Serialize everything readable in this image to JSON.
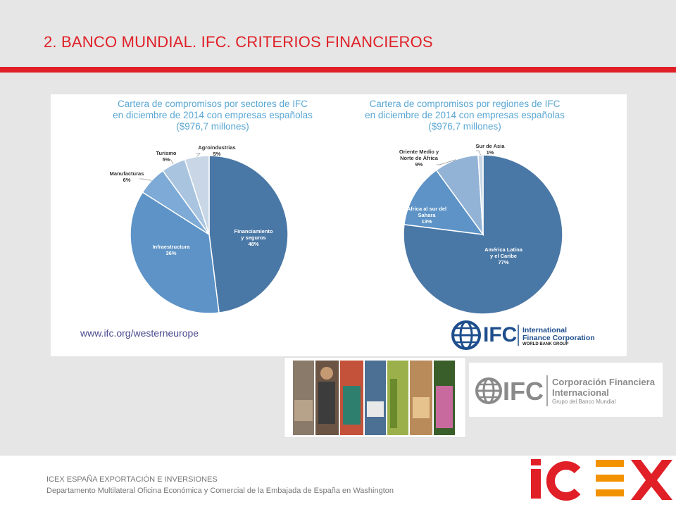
{
  "slide": {
    "title": "2. BANCO MUNDIAL. IFC. CRITERIOS FINANCIEROS"
  },
  "chart_data": [
    {
      "type": "pie",
      "title": "Cartera de compromisos por sectores de IFC\nen diciembre de 2014 con empresas españolas\n($976,7 millones)",
      "slices": [
        {
          "label": "Financiamiento\ny seguros",
          "value": 48,
          "display": "48%",
          "color": "#4a78a6"
        },
        {
          "label": "Infraestructura",
          "value": 36,
          "display": "36%",
          "color": "#5d93c6"
        },
        {
          "label": "Manufacturas",
          "value": 6,
          "display": "6%",
          "color": "#7daad6"
        },
        {
          "label": "Turismo",
          "value": 5,
          "display": "5%",
          "color": "#a9c4df"
        },
        {
          "label": "Agroindustrias",
          "value": 5,
          "display": "5%",
          "color": "#c8d6e6"
        }
      ]
    },
    {
      "type": "pie",
      "title": "Cartera de compromisos por regiones de IFC\nen diciembre de 2014 con empresas españolas\n($976,7 millones)",
      "slices": [
        {
          "label": "América Latina\ny el Caribe",
          "value": 77,
          "display": "77%",
          "color": "#4a78a6"
        },
        {
          "label": "África al sur del\nSahara",
          "value": 13,
          "display": "13%",
          "color": "#5d93c6"
        },
        {
          "label": "Oriente Medio y\nNorte de África",
          "value": 9,
          "display": "9%",
          "color": "#93b3d6"
        },
        {
          "label": "Sur de Asia",
          "value": 1,
          "display": "1%",
          "color": "#c8d6e6"
        }
      ]
    }
  ],
  "panel": {
    "url": "www.ifc.org/westerneurope"
  },
  "logos": {
    "ifc_en": {
      "mark": "IFC",
      "line1": "International",
      "line2": "Finance Corporation",
      "line3": "WORLD BANK GROUP"
    },
    "ifc_es": {
      "mark": "IFC",
      "line1": "Corporación Financiera",
      "line2": "Internacional",
      "line3": "Grupo del Banco Mundial"
    },
    "icex": {
      "text": "ICEX"
    }
  },
  "footer": {
    "line1": "ICEX ESPAÑA EXPORTACIÓN  E INVERSIONES",
    "line2": "Departamento Multilateral Oficina Económica y Comercial de la Embajada de España en Washington"
  },
  "colors": {
    "accent_red": "#e01f26",
    "header_bg": "#e6e6e6",
    "chart_title": "#5aa7d4",
    "ifc_blue": "#1e4e8c",
    "icex_orange": "#f39200"
  }
}
